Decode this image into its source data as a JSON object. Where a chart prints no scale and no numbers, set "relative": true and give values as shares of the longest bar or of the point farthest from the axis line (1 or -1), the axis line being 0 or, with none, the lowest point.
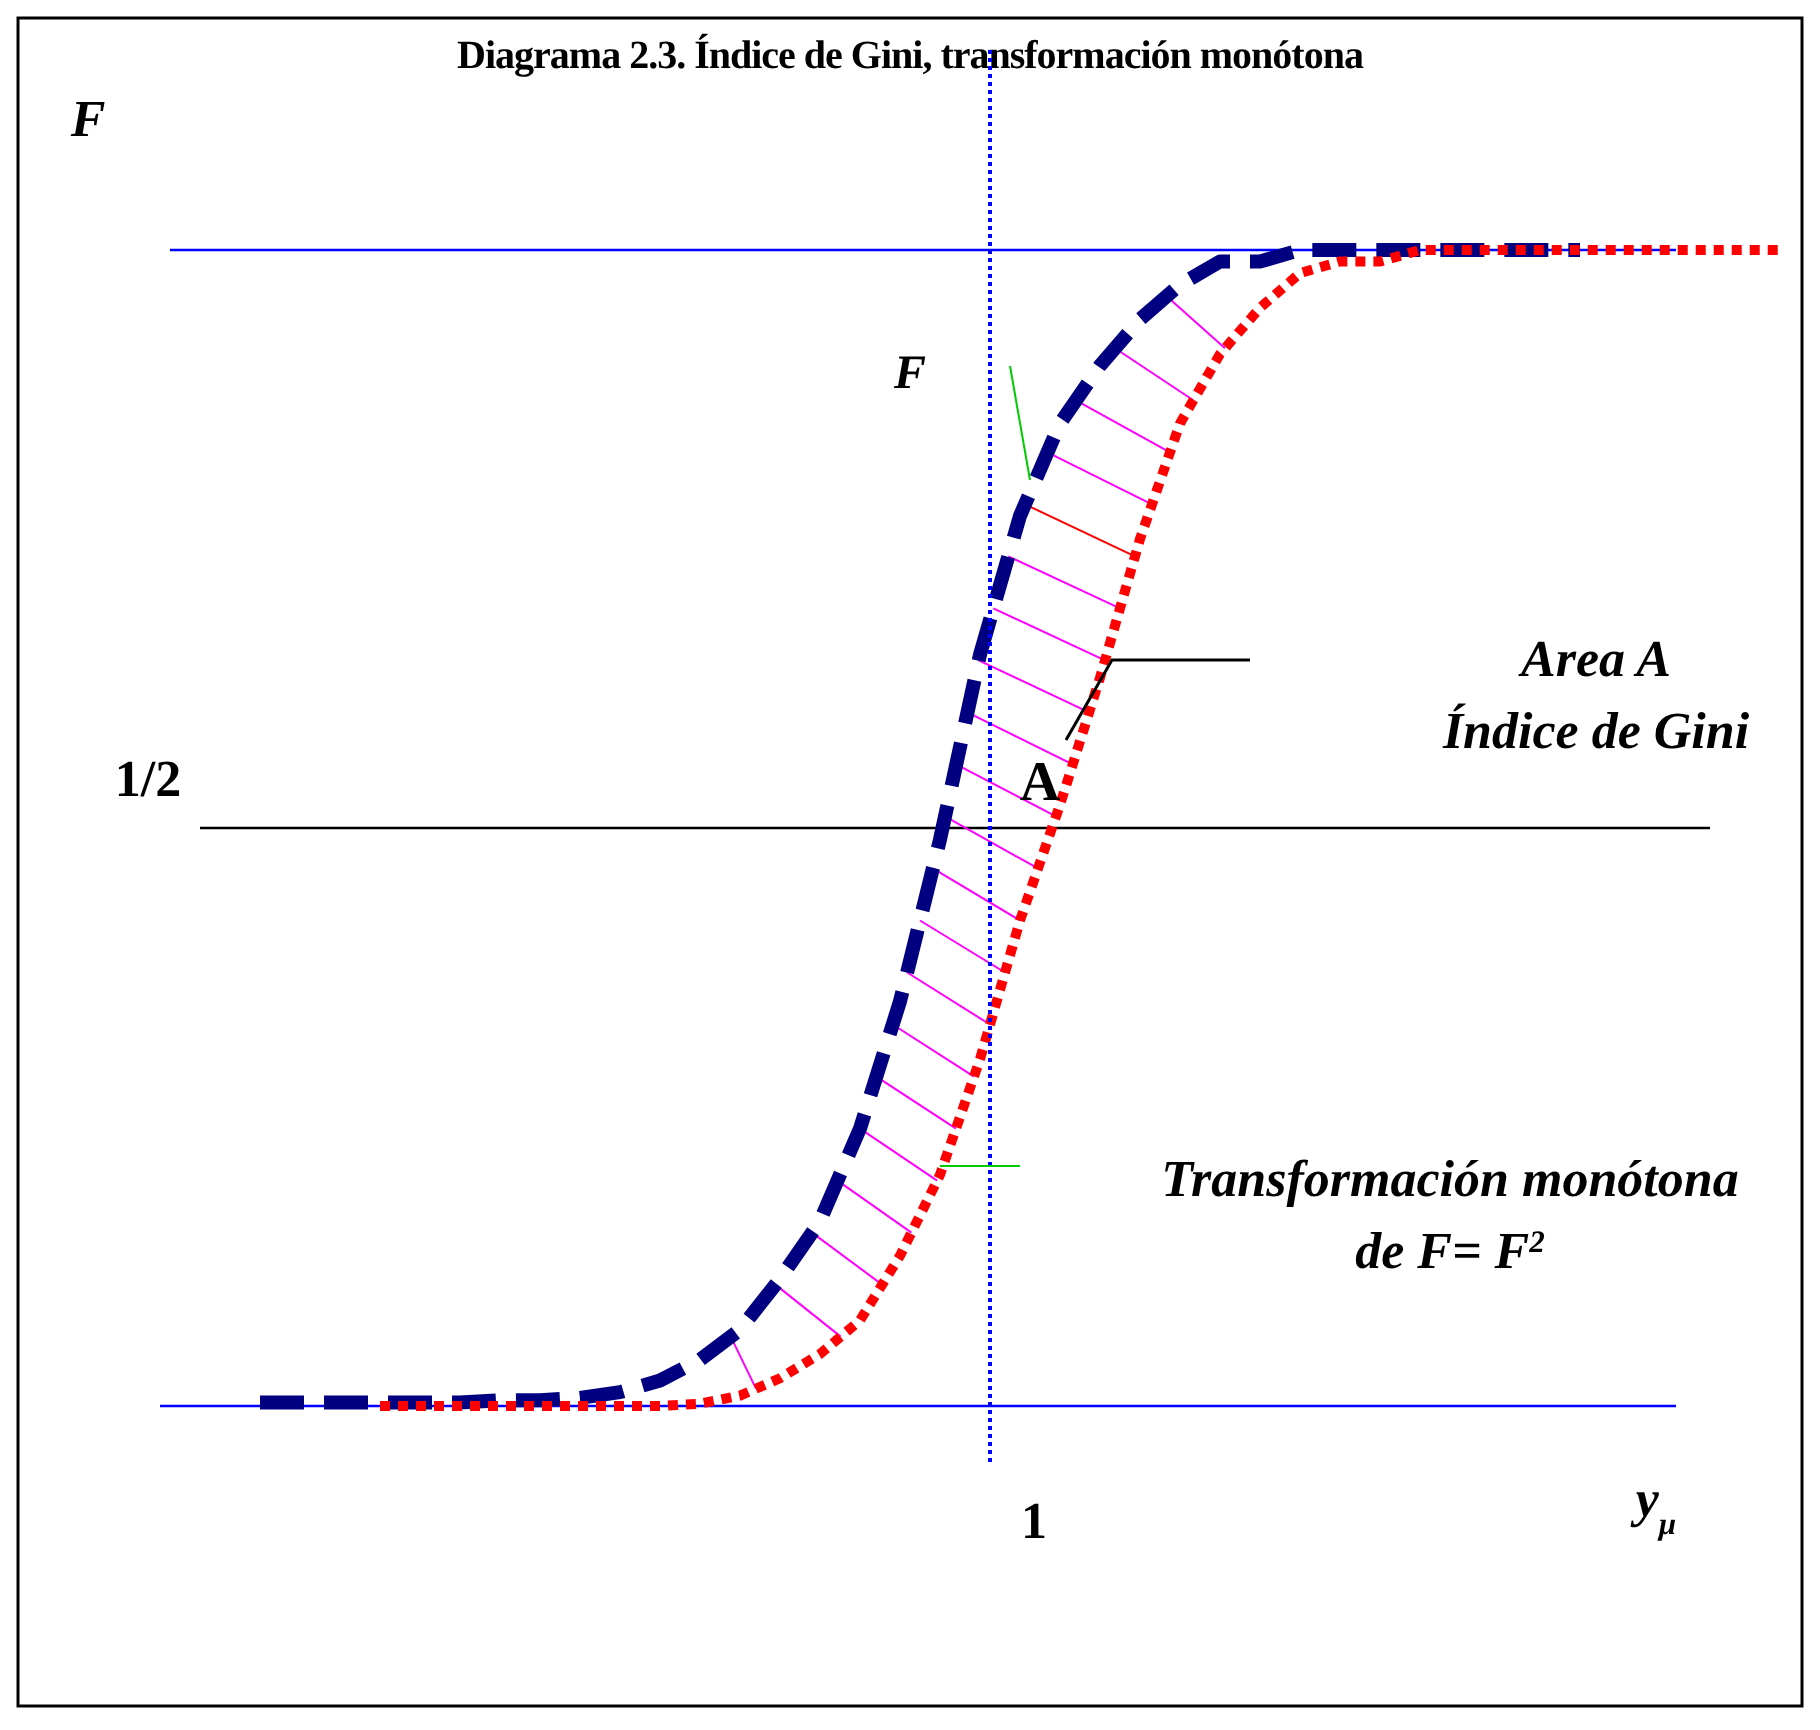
{
  "chart_data": {
    "type": "line",
    "title": "Diagrama 2.3. Índice de Gini, transformación monótona",
    "xlabel": "y$_{μ}$",
    "ylabel": "F",
    "relative": true,
    "categories": [
      null,
      null,
      null,
      null,
      null,
      null,
      null,
      null,
      null,
      null,
      null,
      null,
      null,
      null,
      null,
      null,
      null,
      null,
      null,
      null,
      null,
      null,
      null,
      null,
      null,
      null,
      null,
      null,
      null,
      null,
      null,
      null,
      null,
      null,
      null,
      null,
      null,
      null,
      null
    ],
    "series": [
      {
        "color": "#000080",
        "line_style": "dashed",
        "values": [
          0.003,
          0.003,
          0.003,
          0.003,
          0.003,
          0.003,
          0.005,
          0.005,
          0.007,
          0.012,
          0.022,
          0.04,
          0.066,
          0.11,
          0.16,
          0.24,
          0.35,
          0.49,
          0.65,
          0.77,
          0.85,
          0.9,
          0.94,
          0.97,
          0.99,
          0.99,
          1,
          1,
          1,
          1,
          1,
          1,
          1,
          1,
          null,
          null,
          null,
          null,
          null
        ]
      },
      {
        "color": "#ff0000",
        "line_style": "dotted",
        "values": [
          null,
          null,
          null,
          0,
          0,
          0,
          0,
          0,
          0,
          0,
          0,
          0.002,
          0.009,
          0.024,
          0.045,
          0.074,
          0.13,
          0.2,
          0.3,
          0.42,
          0.52,
          0.63,
          0.75,
          0.85,
          0.91,
          0.95,
          0.98,
          0.99,
          0.99,
          1,
          1,
          1,
          1,
          1,
          1,
          1,
          1,
          1,
          1
        ]
      }
    ],
    "ref_lines": [
      {
        "axis": "y",
        "value": 0.5,
        "label": "1/2",
        "color": "#000000"
      }
    ],
    "annotations": [
      "F",
      "A",
      "1",
      "Area A",
      "Índice de Gini",
      "Transformación monótona",
      "de F= F$^{2}$"
    ]
  }
}
